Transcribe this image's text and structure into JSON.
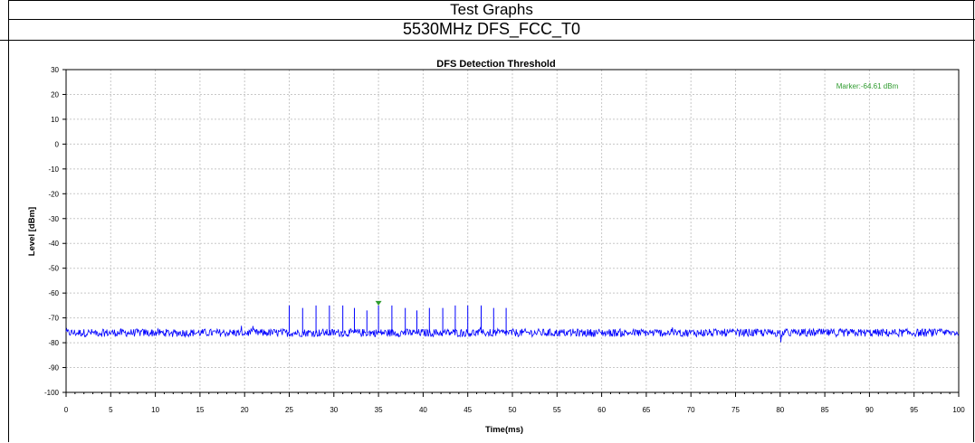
{
  "header": {
    "title": "Test Graphs",
    "subtitle": "5530MHz DFS_FCC_T0"
  },
  "chart_data": {
    "type": "line",
    "title": "DFS Detection Threshold",
    "xlabel": "Time(ms)",
    "ylabel": "Level [dBm]",
    "xlim": [
      0,
      100
    ],
    "ylim": [
      -100,
      30
    ],
    "xticks": [
      0,
      5,
      10,
      15,
      20,
      25,
      30,
      35,
      40,
      45,
      50,
      55,
      60,
      65,
      70,
      75,
      80,
      85,
      90,
      95,
      100
    ],
    "yticks": [
      30,
      20,
      10,
      0,
      -10,
      -20,
      -30,
      -40,
      -50,
      -60,
      -70,
      -80,
      -90,
      -100
    ],
    "grid": true,
    "marker_label": "Marker:-64.61 dBm",
    "marker": {
      "x": 35,
      "y": -64.61
    },
    "series": [
      {
        "color": "#0000ff",
        "noise_floor": -76,
        "pulses": [
          {
            "x": 25.0,
            "y": -65
          },
          {
            "x": 26.5,
            "y": -66
          },
          {
            "x": 28.0,
            "y": -65
          },
          {
            "x": 29.5,
            "y": -65
          },
          {
            "x": 31.0,
            "y": -65
          },
          {
            "x": 32.3,
            "y": -66
          },
          {
            "x": 33.7,
            "y": -67
          },
          {
            "x": 35.0,
            "y": -65
          },
          {
            "x": 36.5,
            "y": -65
          },
          {
            "x": 38.0,
            "y": -66
          },
          {
            "x": 39.3,
            "y": -67
          },
          {
            "x": 40.7,
            "y": -66
          },
          {
            "x": 42.2,
            "y": -66
          },
          {
            "x": 43.6,
            "y": -65
          },
          {
            "x": 45.0,
            "y": -65
          },
          {
            "x": 46.5,
            "y": -65
          },
          {
            "x": 47.9,
            "y": -66
          },
          {
            "x": 49.3,
            "y": -66
          }
        ]
      }
    ],
    "colors": {
      "trace": "#0000ff",
      "marker": "#2e9b2e",
      "grid": "#c8c8c8"
    }
  }
}
